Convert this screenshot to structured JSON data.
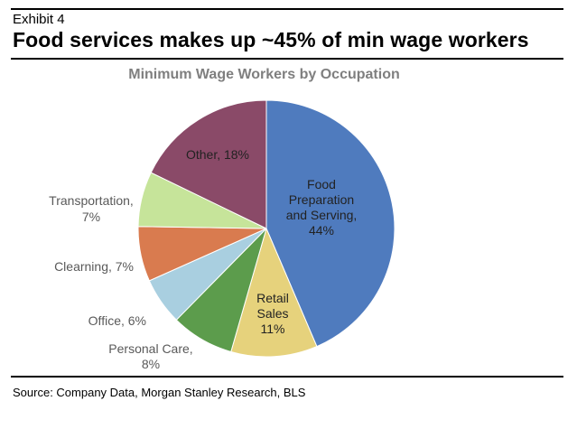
{
  "header": {
    "exhibit": "Exhibit 4",
    "headline": "Food services makes up ~45% of min wage workers"
  },
  "chart_data": {
    "type": "pie",
    "title": "Minimum Wage Workers by Occupation",
    "slices": [
      {
        "name": "Food Preparation and Serving",
        "value": 44,
        "color": "#4F7BBE",
        "label_lines": [
          "Food",
          "Preparation",
          "and Serving,",
          "44%"
        ],
        "label_style": "inside"
      },
      {
        "name": "Retail Sales",
        "value": 11,
        "color": "#E6D27C",
        "label_lines": [
          "Retail",
          "Sales",
          "11%"
        ],
        "label_style": "inside"
      },
      {
        "name": "Personal Care",
        "value": 8,
        "color": "#5C9C4C",
        "label_lines": [
          "Personal Care,",
          "8%"
        ],
        "label_style": "outside"
      },
      {
        "name": "Office",
        "value": 6,
        "color": "#A9CFE0",
        "label_lines": [
          "Office, 6%"
        ],
        "label_style": "outside"
      },
      {
        "name": "Clearning",
        "value": 7,
        "color": "#D97B4F",
        "label_lines": [
          "Clearning, 7%"
        ],
        "label_style": "outside"
      },
      {
        "name": "Transportation",
        "value": 7,
        "color": "#C6E49A",
        "label_lines": [
          "Transportation,",
          "7%"
        ],
        "label_style": "outside"
      },
      {
        "name": "Other",
        "value": 18,
        "color": "#8A4A68",
        "label_lines": [
          "Other, 18%"
        ],
        "label_style": "inside"
      }
    ]
  },
  "footer": {
    "source": "Source: Company Data, Morgan Stanley Research, BLS"
  }
}
